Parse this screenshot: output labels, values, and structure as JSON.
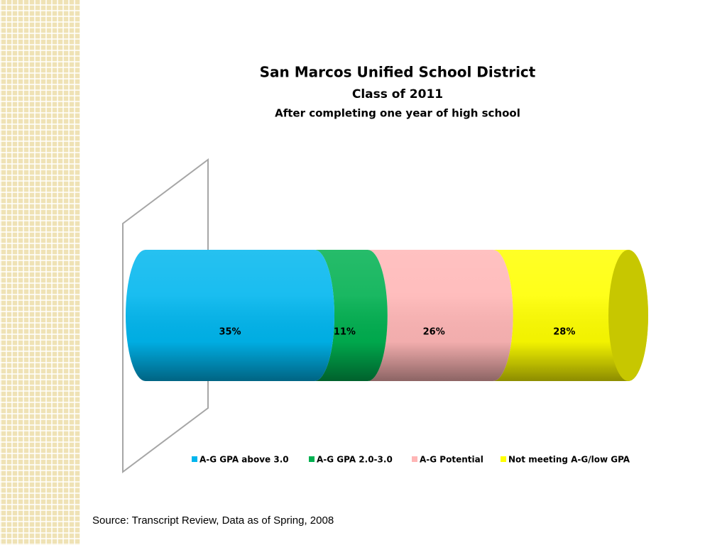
{
  "chart_data": {
    "type": "bar",
    "orientation": "horizontal",
    "stacked": true,
    "title": "San Marcos Unified School District",
    "subtitles": [
      "Class of 2011",
      "After completing one year of high school"
    ],
    "categories": [
      null
    ],
    "series": [
      {
        "name": "A-G GPA above 3.0",
        "color": "#00b6ee",
        "values": [
          35
        ],
        "value_labels": [
          "35%"
        ]
      },
      {
        "name": "A-G GPA 2.0-3.0",
        "color": "#00b050",
        "values": [
          11
        ],
        "value_labels": [
          "11%"
        ]
      },
      {
        "name": "A-G Potential",
        "color": "#ffb6b6",
        "values": [
          26
        ],
        "value_labels": [
          "26%"
        ]
      },
      {
        "name": "Not meeting A-G/low GPA",
        "color": "#ffff00",
        "values": [
          28
        ],
        "value_labels": [
          "28%"
        ]
      }
    ],
    "legend": "bottom"
  },
  "source": "Source: Transcript Review, Data as of Spring, 2008"
}
